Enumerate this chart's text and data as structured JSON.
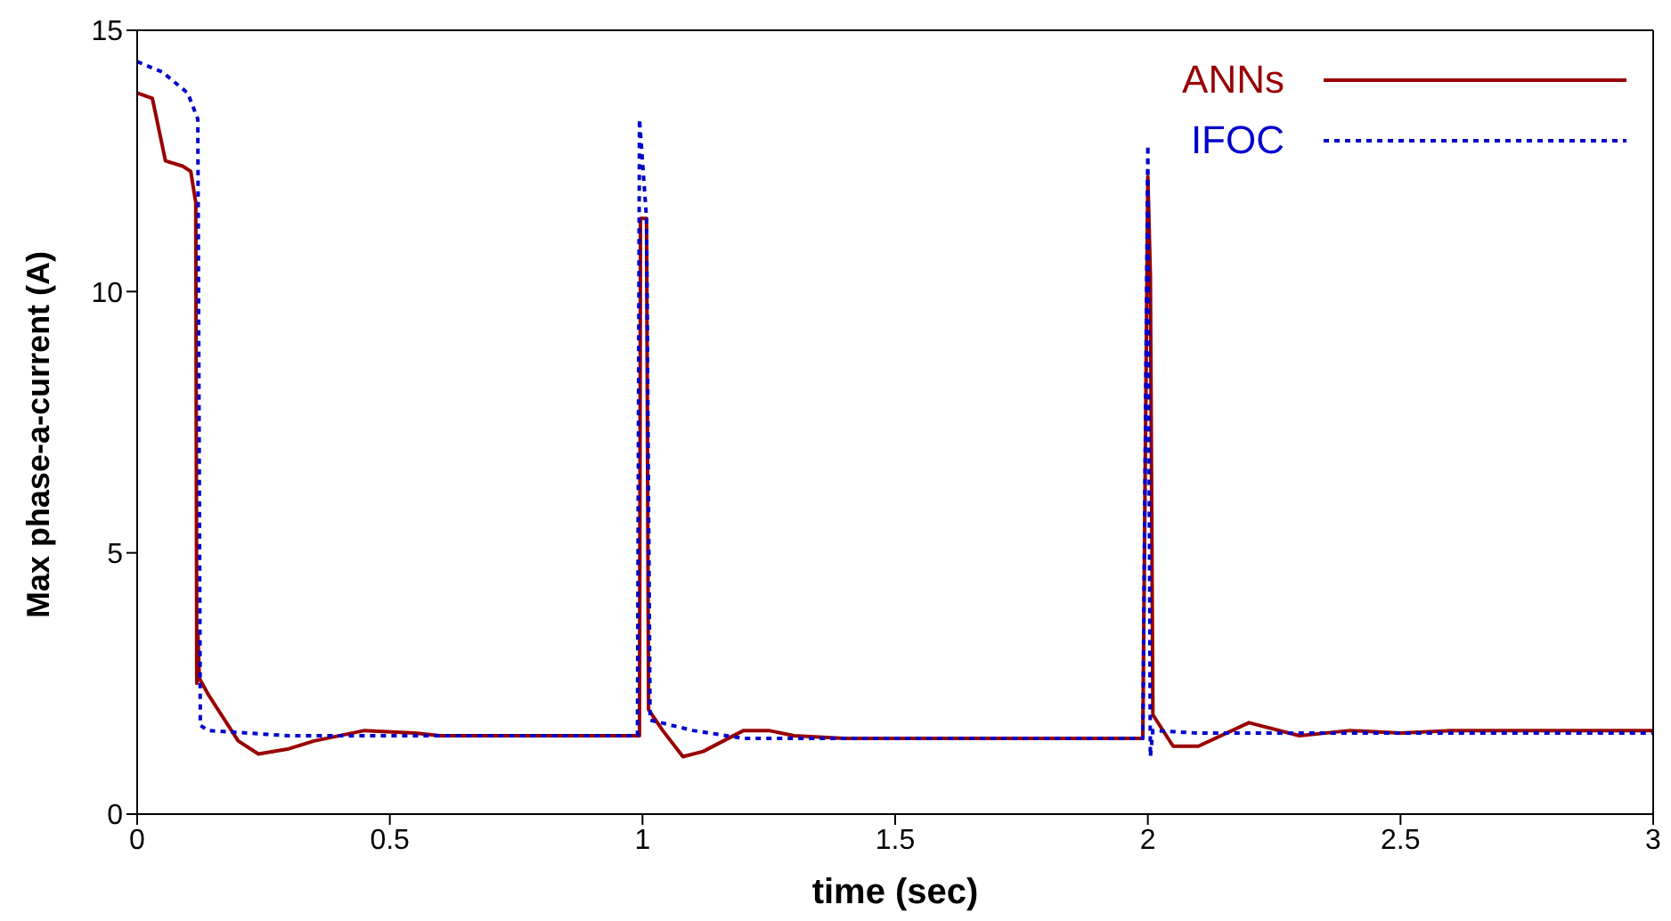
{
  "chart_data": {
    "type": "line",
    "xlabel": "time (sec)",
    "ylabel": "Max phase-a-current (A)",
    "xlim": [
      0,
      3
    ],
    "xticks": [
      0,
      0.5,
      1,
      1.5,
      2,
      2.5,
      3
    ],
    "ylim": [
      0,
      15
    ],
    "yticks": [
      0,
      5,
      10,
      15
    ],
    "legend": "top right",
    "marker": "none",
    "series": [
      {
        "name": "ANNs",
        "color": "#990000",
        "line_style": "solid",
        "x": [
          0,
          0.03,
          0.056,
          0.09,
          0.106,
          0.116,
          0.118,
          0.12,
          0.123,
          0.14,
          0.2,
          0.24,
          0.3,
          0.35,
          0.45,
          0.55,
          0.6,
          0.994,
          0.996,
          1.008,
          1.012,
          1.04,
          1.08,
          1.12,
          1.2,
          1.25,
          1.3,
          1.4,
          1.99,
          2.0,
          2.005,
          2.01,
          2.05,
          2.1,
          2.2,
          2.3,
          2.4,
          2.5,
          2.6,
          3
        ],
        "values": [
          13.8,
          13.7,
          12.5,
          12.4,
          12.3,
          11.7,
          2.5,
          3.5,
          2.6,
          2.3,
          1.4,
          1.15,
          1.25,
          1.4,
          1.6,
          1.55,
          1.5,
          1.5,
          11.4,
          11.4,
          2,
          1.6,
          1.1,
          1.2,
          1.6,
          1.6,
          1.5,
          1.45,
          1.45,
          12.2,
          10.3,
          1.9,
          1.3,
          1.3,
          1.75,
          1.5,
          1.6,
          1.55,
          1.6,
          1.6
        ]
      },
      {
        "name": "IFOC",
        "color": "#0000cc",
        "line_style": "dotted",
        "x": [
          0,
          0.05,
          0.1,
          0.12,
          0.125,
          0.14,
          0.3,
          0.5,
          0.99,
          0.994,
          1.008,
          1.015,
          1.1,
          1.2,
          1.99,
          2.0,
          2.005,
          2.01,
          2.1,
          3
        ],
        "values": [
          14.4,
          14.2,
          13.8,
          13.3,
          1.7,
          1.6,
          1.5,
          1.5,
          1.5,
          13.3,
          11.4,
          1.8,
          1.6,
          1.45,
          1.45,
          12.8,
          1.1,
          1.6,
          1.55,
          1.55
        ]
      }
    ]
  }
}
